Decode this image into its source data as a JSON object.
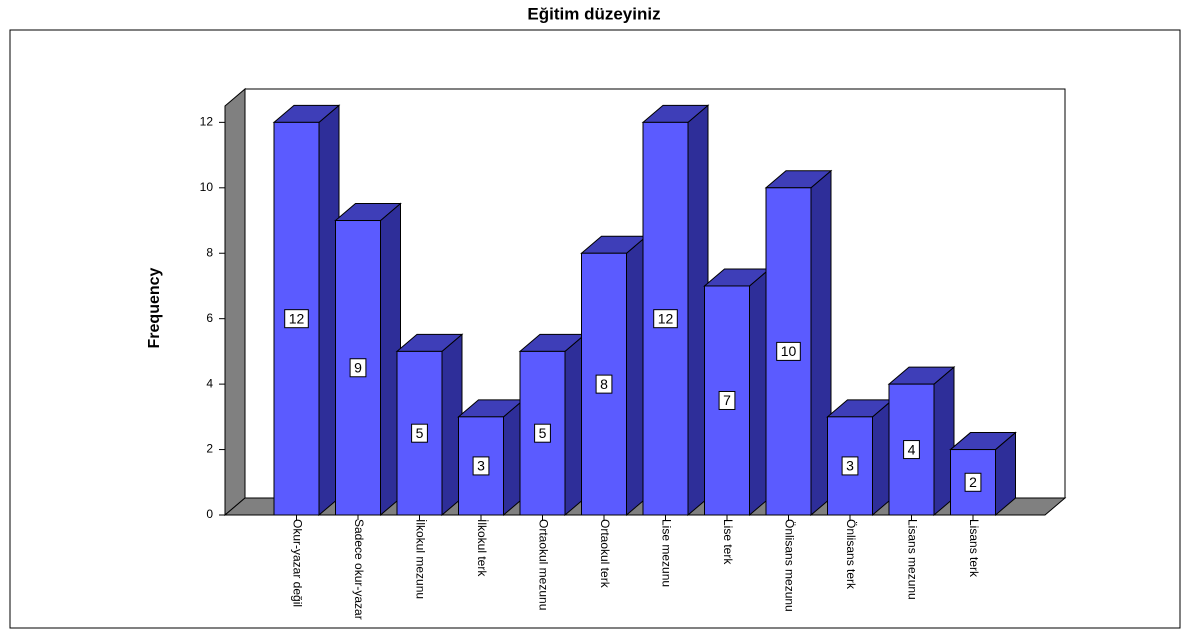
{
  "chart_data": {
    "type": "bar3d",
    "title": "Eğitim düzeyiniz",
    "y_label": "Frequency",
    "categories": [
      "Okur-yazar değil",
      "Sadece okur-yazar",
      "İlkokul mezunu",
      "İlkokul terk",
      "Ortaokul mezunu",
      "Ortaokul terk",
      "Lise mezunu",
      "Lise terk",
      "Önlisans mezunu",
      "Önlisans terk",
      "Lisans mezunu",
      "Lisans terk"
    ],
    "values": [
      12,
      9,
      5,
      3,
      5,
      8,
      12,
      7,
      10,
      3,
      4,
      2
    ],
    "color": "#5b5bff",
    "ylim": [
      0,
      12.5
    ],
    "yticks": [
      0,
      2,
      4,
      6,
      8,
      10,
      12
    ]
  }
}
